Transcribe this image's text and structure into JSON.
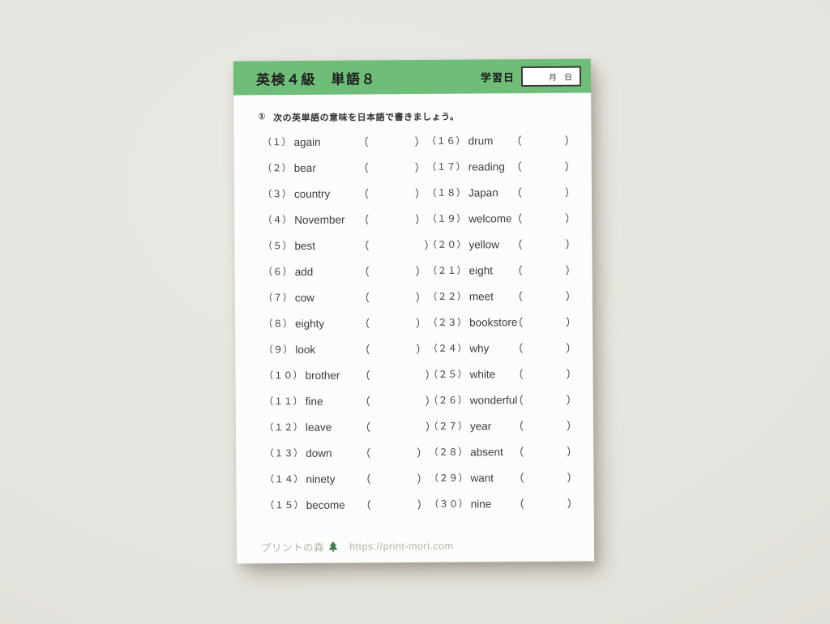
{
  "page": {
    "background_color": "#e5e3dd",
    "paper_color": "#fcfcfb"
  },
  "header": {
    "title": "英検４級　単語８",
    "date_label": "学習日",
    "date_month": "月",
    "date_day": "日",
    "accent_color": "#6ebe79",
    "date_box_border_color": "#3b3b3b"
  },
  "instruction": {
    "marker": "①",
    "text": "次の英単語の意味を日本語で書きましょう。"
  },
  "worksheet": {
    "answer_open": "（",
    "answer_close": "）",
    "columns": [
      {
        "items": [
          {
            "no": "（１）",
            "word": "again"
          },
          {
            "no": "（２）",
            "word": "bear"
          },
          {
            "no": "（３）",
            "word": "country"
          },
          {
            "no": "（４）",
            "word": "November"
          },
          {
            "no": "（５）",
            "word": "best",
            "wide": true
          },
          {
            "no": "（６）",
            "word": "add"
          },
          {
            "no": "（７）",
            "word": "cow"
          },
          {
            "no": "（８）",
            "word": "eighty"
          },
          {
            "no": "（９）",
            "word": "look"
          },
          {
            "no": "（１０）",
            "word": "brother",
            "wide": true
          },
          {
            "no": "（１１）",
            "word": "fine",
            "wide": true
          },
          {
            "no": "（１２）",
            "word": "leave",
            "wide": true
          },
          {
            "no": "（１３）",
            "word": "down"
          },
          {
            "no": "（１４）",
            "word": "ninety"
          },
          {
            "no": "（１５）",
            "word": "become"
          }
        ]
      },
      {
        "items": [
          {
            "no": "（１６）",
            "word": "drum"
          },
          {
            "no": "（１７）",
            "word": "reading"
          },
          {
            "no": "（１８）",
            "word": "Japan"
          },
          {
            "no": "（１９）",
            "word": "welcome"
          },
          {
            "no": "（２０）",
            "word": "yellow"
          },
          {
            "no": "（２１）",
            "word": "eight"
          },
          {
            "no": "（２２）",
            "word": "meet"
          },
          {
            "no": "（２３）",
            "word": "bookstore"
          },
          {
            "no": "（２４）",
            "word": "why"
          },
          {
            "no": "（２５）",
            "word": "white"
          },
          {
            "no": "（２６）",
            "word": "wonderful"
          },
          {
            "no": "（２７）",
            "word": "year"
          },
          {
            "no": "（２８）",
            "word": "absent"
          },
          {
            "no": "（２９）",
            "word": "want"
          },
          {
            "no": "（３０）",
            "word": "nine"
          }
        ]
      }
    ]
  },
  "footer": {
    "brand": "プリントの森",
    "url": "https://print-mori.com",
    "tree_icon_color": "#3f7d4a",
    "text_color": "#b6b3ab"
  }
}
